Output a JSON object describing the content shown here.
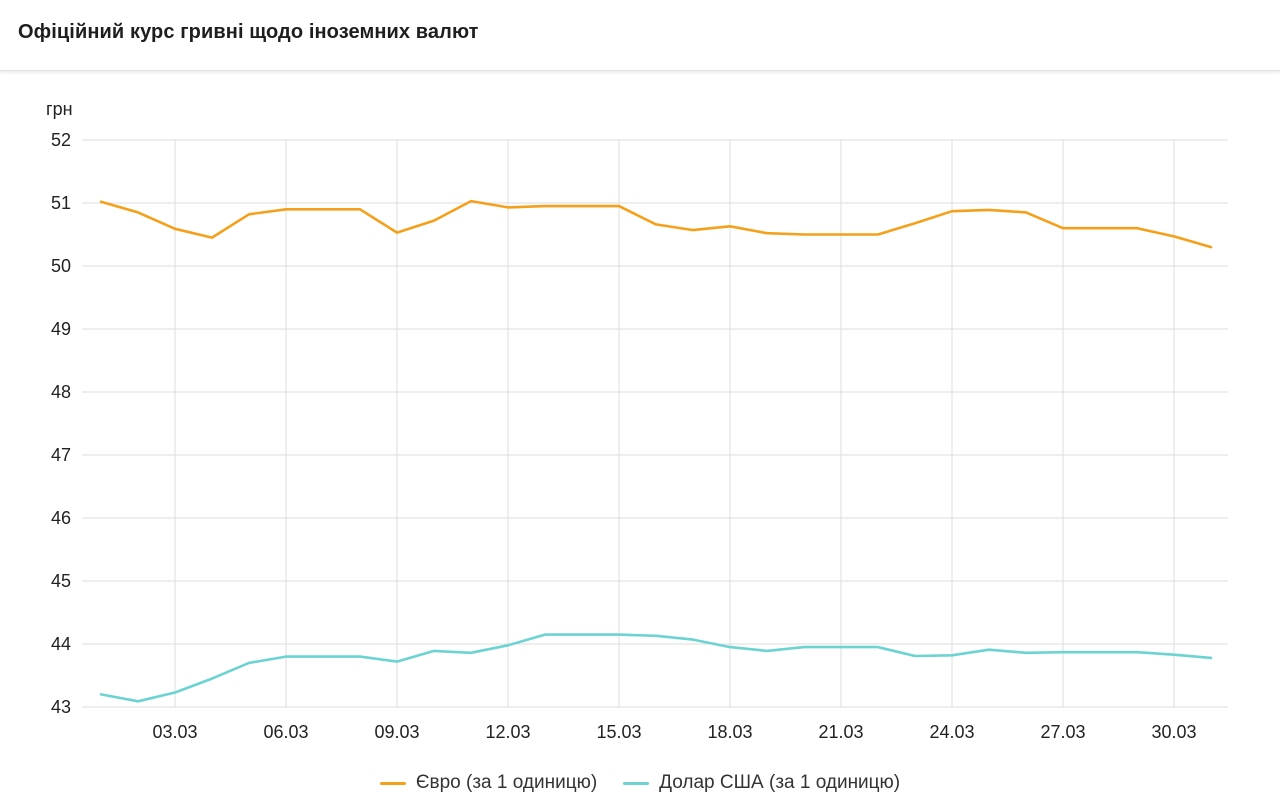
{
  "header": {
    "title": "Офіційний курс гривні щодо іноземних валют"
  },
  "chart_data": {
    "type": "line",
    "title": "Офіційний курс гривні щодо іноземних валют",
    "ylabel": "грн",
    "xlabel": "",
    "ylim": [
      43,
      52
    ],
    "yticks": [
      "43",
      "44",
      "45",
      "46",
      "47",
      "48",
      "49",
      "50",
      "51",
      "52"
    ],
    "xticks": [
      "03.03",
      "06.03",
      "09.03",
      "12.03",
      "15.03",
      "18.03",
      "21.03",
      "24.03",
      "27.03",
      "30.03"
    ],
    "grid": true,
    "legend_position": "bottom",
    "x_start_day": 1,
    "x_end_day": 31,
    "series": [
      {
        "name": "Євро (за 1 одиницю)",
        "color": "#f5a01a",
        "values": [
          51.02,
          50.85,
          50.59,
          50.45,
          50.82,
          50.9,
          50.9,
          50.9,
          50.53,
          50.72,
          51.03,
          50.93,
          50.95,
          50.95,
          50.95,
          50.66,
          50.57,
          50.63,
          50.52,
          50.5,
          50.5,
          50.5,
          50.68,
          50.87,
          50.89,
          50.85,
          50.6,
          50.6,
          50.6,
          50.47,
          50.3
        ]
      },
      {
        "name": "Долар США (за 1 одиницю)",
        "color": "#6cd3d3",
        "values": [
          43.2,
          43.09,
          43.23,
          43.45,
          43.7,
          43.8,
          43.8,
          43.8,
          43.72,
          43.89,
          43.86,
          43.98,
          44.15,
          44.15,
          44.15,
          44.13,
          44.07,
          43.95,
          43.89,
          43.95,
          43.95,
          43.95,
          43.81,
          43.82,
          43.91,
          43.86,
          43.87,
          43.87,
          43.87,
          43.83,
          43.78
        ]
      }
    ]
  }
}
